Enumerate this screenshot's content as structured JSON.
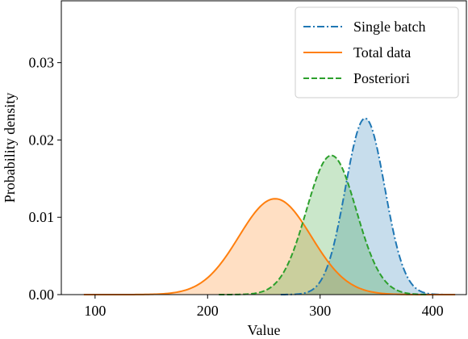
{
  "chart_data": {
    "type": "area",
    "title": "",
    "xlabel": "Value",
    "ylabel": "Probability density",
    "xlim": [
      70,
      430
    ],
    "ylim": [
      0,
      0.038
    ],
    "xticks": [
      100,
      200,
      300,
      400
    ],
    "yticks": [
      0.0,
      0.01,
      0.02,
      0.03
    ],
    "ytick_labels": [
      "0.00",
      "0.01",
      "0.02",
      "0.03"
    ],
    "grid": false,
    "legend_position": "top-right",
    "series": [
      {
        "name": "Single batch",
        "color": "#1f77b4",
        "line_style": "dashdot",
        "distribution": "normal",
        "mean": 340,
        "peak_density": 0.0228,
        "x_range": [
          265,
          420
        ]
      },
      {
        "name": "Total data",
        "color": "#ff7f0e",
        "line_style": "solid",
        "distribution": "normal",
        "mean": 260,
        "peak_density": 0.0124,
        "x_range": [
          90,
          420
        ]
      },
      {
        "name": "Posteriori",
        "color": "#2ca02c",
        "line_style": "dashed",
        "distribution": "normal",
        "mean": 310,
        "peak_density": 0.018,
        "x_range": [
          210,
          395
        ]
      }
    ]
  }
}
